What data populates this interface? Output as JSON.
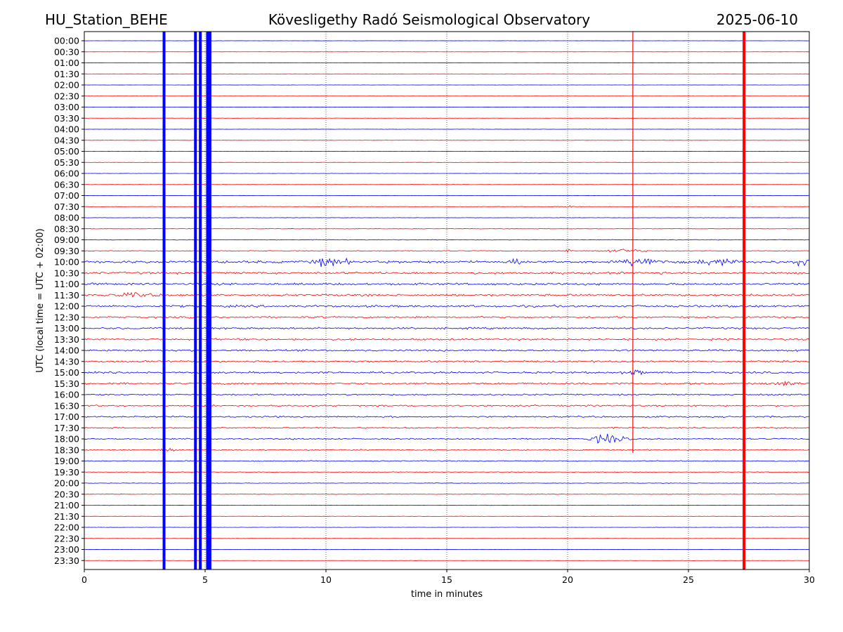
{
  "header": {
    "station": "HU_Station_BEHE",
    "observatory": "Kövesligethy Radó Seismological Observatory",
    "date": "2025-06-10"
  },
  "chart_data": {
    "type": "line",
    "title": "Kövesligethy Radó Seismological Observatory",
    "xlabel": "time in minutes",
    "ylabel": "UTC (local time = UTC + 02:00)",
    "xlim": [
      0,
      30
    ],
    "xticks": [
      0,
      5,
      10,
      15,
      20,
      25,
      30
    ],
    "grid": "vertical dotted at x ticks",
    "row_labels": [
      "00:00",
      "00:30",
      "01:00",
      "01:30",
      "02:00",
      "02:30",
      "03:00",
      "03:30",
      "04:00",
      "04:30",
      "05:00",
      "05:30",
      "06:00",
      "06:30",
      "07:00",
      "07:30",
      "08:00",
      "08:30",
      "09:00",
      "09:30",
      "10:00",
      "10:30",
      "11:00",
      "11:30",
      "12:00",
      "12:30",
      "13:00",
      "13:30",
      "14:00",
      "14:30",
      "15:00",
      "15:30",
      "16:00",
      "16:30",
      "17:00",
      "17:30",
      "18:00",
      "18:30",
      "19:00",
      "19:30",
      "20:00",
      "20:30",
      "21:00",
      "21:30",
      "22:00",
      "22:30",
      "23:00",
      "23:30"
    ],
    "trace_colors": [
      "#0000ff",
      "#ff0000"
    ],
    "row_noise": [
      0.03,
      0.03,
      0.03,
      0.03,
      0.03,
      0.03,
      0.03,
      0.04,
      0.04,
      0.04,
      0.05,
      0.04,
      0.04,
      0.04,
      0.05,
      0.06,
      0.06,
      0.08,
      0.1,
      0.12,
      0.4,
      0.35,
      0.35,
      0.35,
      0.35,
      0.3,
      0.3,
      0.3,
      0.3,
      0.3,
      0.3,
      0.3,
      0.25,
      0.25,
      0.25,
      0.22,
      0.22,
      0.18,
      0.15,
      0.1,
      0.08,
      0.08,
      0.06,
      0.05,
      0.05,
      0.04,
      0.04,
      0.04
    ],
    "vertical_events": [
      {
        "x": 3.3,
        "color": "#0000ff"
      },
      {
        "x": 4.6,
        "color": "#0000ff"
      },
      {
        "x": 4.8,
        "color": "#0000ff"
      },
      {
        "x": 5.1,
        "color": "#0000ff"
      },
      {
        "x": 5.2,
        "color": "#0000ff"
      },
      {
        "x": 27.3,
        "color": "#ff0000"
      }
    ],
    "spike_event": {
      "x": 22.7,
      "color": "#ff0000",
      "row_start": "00:00",
      "row_end": "18:30"
    },
    "bursts": [
      {
        "row": "07:30",
        "x": 20.0,
        "amp": 0.5,
        "width": 0.8
      },
      {
        "row": "09:30",
        "x": 20.0,
        "amp": 0.8,
        "width": 0.3
      },
      {
        "row": "09:30",
        "x": 22.3,
        "amp": 0.7,
        "width": 1.2
      },
      {
        "row": "10:00",
        "x": 9.9,
        "amp": 1.5,
        "width": 0.6
      },
      {
        "row": "10:00",
        "x": 10.6,
        "amp": 1.1,
        "width": 0.5
      },
      {
        "row": "10:00",
        "x": 17.9,
        "amp": 1.2,
        "width": 0.4
      },
      {
        "row": "10:00",
        "x": 23.2,
        "amp": 1.5,
        "width": 1.2
      },
      {
        "row": "10:00",
        "x": 26.1,
        "amp": 1.2,
        "width": 1.0
      },
      {
        "row": "10:00",
        "x": 29.6,
        "amp": 1.1,
        "width": 0.5
      },
      {
        "row": "11:30",
        "x": 2.0,
        "amp": 0.6,
        "width": 1.5
      },
      {
        "row": "15:00",
        "x": 22.7,
        "amp": 0.9,
        "width": 0.6
      },
      {
        "row": "15:30",
        "x": 29.1,
        "amp": 0.6,
        "width": 1.0
      },
      {
        "row": "18:00",
        "x": 21.7,
        "amp": 1.8,
        "width": 1.0
      },
      {
        "row": "18:30",
        "x": 3.5,
        "amp": 0.5,
        "width": 0.6
      }
    ]
  }
}
